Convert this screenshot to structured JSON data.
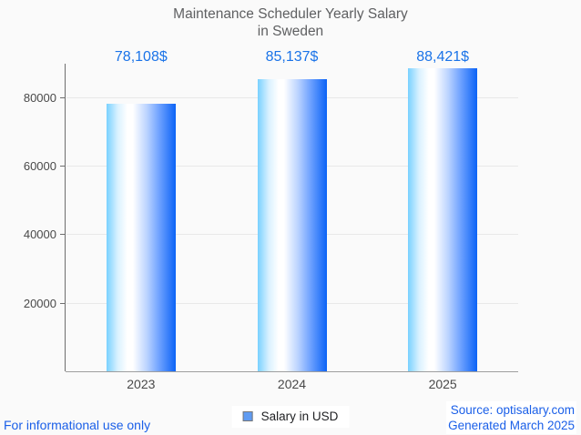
{
  "title": {
    "line1": "Maintenance Scheduler Yearly Salary",
    "line2": "in Sweden"
  },
  "legend": {
    "label": "Salary in USD"
  },
  "footer": {
    "disclaimer": "For informational use only",
    "source": "Source: optisalary.com",
    "generated": "Generated March 2025"
  },
  "chart_data": {
    "type": "bar",
    "title": "Maintenance Scheduler Yearly Salary in Sweden",
    "categories": [
      "2023",
      "2024",
      "2025"
    ],
    "series": [
      {
        "name": "Salary in USD",
        "values": [
          78108,
          85137,
          88421
        ]
      }
    ],
    "value_labels": [
      "78,108$",
      "85,137$",
      "88,421$"
    ],
    "yticks": [
      20000,
      40000,
      60000,
      80000
    ],
    "ytick_labels": [
      "20000",
      "40000",
      "60000",
      "80000"
    ],
    "ylim": [
      0,
      89200
    ],
    "xlabel": "",
    "ylabel": "",
    "grid": true,
    "legend_position": "bottom"
  },
  "colors": {
    "background": "#fafafa",
    "title": "#5f6062",
    "value_label": "#1a73e8",
    "footer_link": "#1a5fe8",
    "bar_gradient_left": "#79d1ff",
    "bar_gradient_mid": "#ffffff",
    "bar_gradient_right": "#0b63f6",
    "legend_swatch_fill": "#5f9bf2",
    "legend_swatch_border": "#777777",
    "grid_line": "#e8e8e8",
    "axis_line": "#6e6e6e",
    "tick_label": "#494949"
  }
}
